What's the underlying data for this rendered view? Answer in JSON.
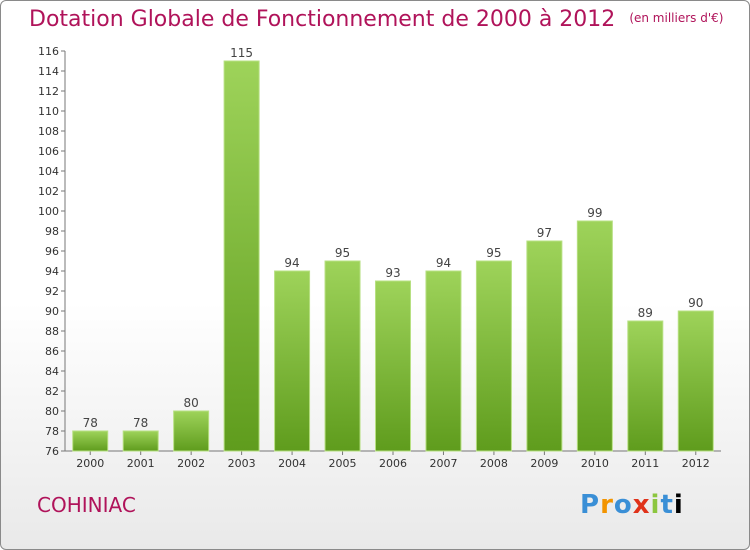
{
  "header": {
    "title": "Dotation Globale de Fonctionnement de 2000 à 2012",
    "unit": "(en milliers d'€)"
  },
  "footer": {
    "commune": "COHINIAC",
    "logo": "Proxiti"
  },
  "colors": {
    "title": "#b0135a",
    "bar_top": "#9ed35a",
    "bar_bottom": "#5f9c1d",
    "axis": "#777777"
  },
  "chart_data": {
    "type": "bar",
    "categories": [
      "2000",
      "2001",
      "2002",
      "2003",
      "2004",
      "2005",
      "2006",
      "2007",
      "2008",
      "2009",
      "2010",
      "2011",
      "2012"
    ],
    "values": [
      78,
      78,
      80,
      115,
      94,
      95,
      93,
      94,
      95,
      97,
      99,
      89,
      90
    ],
    "title": "Dotation Globale de Fonctionnement de 2000 à 2012",
    "subtitle": "(en milliers d'€)",
    "xlabel": "",
    "ylabel": "",
    "ylim": [
      76,
      116
    ],
    "yticks": [
      76,
      78,
      80,
      82,
      84,
      86,
      88,
      90,
      92,
      94,
      96,
      98,
      100,
      102,
      104,
      106,
      108,
      110,
      112,
      114,
      116
    ],
    "grid": false,
    "data_labels": true
  }
}
